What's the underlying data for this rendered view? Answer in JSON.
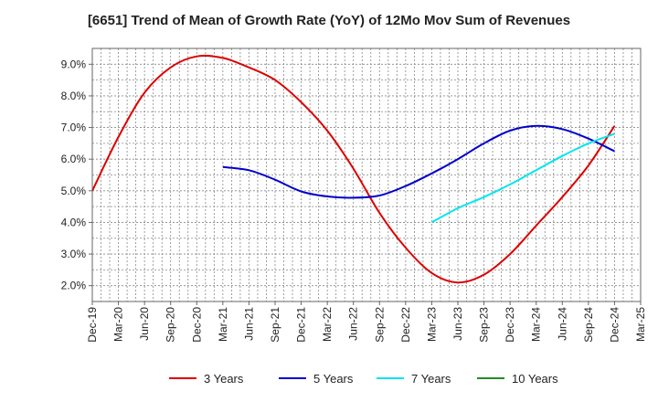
{
  "chart_data": {
    "type": "line",
    "title": "[6651]  Trend of Mean of Growth Rate (YoY) of 12Mo Mov Sum of Revenues",
    "xlabel": "",
    "ylabel": "",
    "x_tick_labels": [
      "Dec-19",
      "Mar-20",
      "Jun-20",
      "Sep-20",
      "Dec-20",
      "Mar-21",
      "Jun-21",
      "Sep-21",
      "Dec-21",
      "Mar-22",
      "Jun-22",
      "Sep-22",
      "Dec-22",
      "Mar-23",
      "Jun-23",
      "Sep-23",
      "Dec-23",
      "Mar-24",
      "Jun-24",
      "Sep-24",
      "Dec-24",
      "Mar-25"
    ],
    "y_tick_labels": [
      "2.0%",
      "3.0%",
      "4.0%",
      "5.0%",
      "6.0%",
      "7.0%",
      "8.0%",
      "9.0%"
    ],
    "y_ticks": [
      2,
      3,
      4,
      5,
      6,
      7,
      8,
      9
    ],
    "ylim": [
      1.5,
      9.5
    ],
    "grid": true,
    "legend_position": "bottom",
    "series": [
      {
        "name": "3 Years",
        "color": "#dd0000",
        "values": [
          5.0,
          6.7,
          8.1,
          8.9,
          9.25,
          9.2,
          8.9,
          8.5,
          7.8,
          6.9,
          5.7,
          4.3,
          3.2,
          2.4,
          2.1,
          2.35,
          3.0,
          3.9,
          4.8,
          5.8,
          7.05,
          null
        ]
      },
      {
        "name": "5 Years",
        "color": "#0000cc",
        "values": [
          null,
          null,
          null,
          null,
          null,
          5.75,
          5.65,
          5.35,
          4.98,
          4.82,
          4.78,
          4.85,
          5.15,
          5.55,
          6.0,
          6.5,
          6.9,
          7.05,
          6.95,
          6.65,
          6.25,
          null
        ]
      },
      {
        "name": "7 Years",
        "color": "#00e5ee",
        "values": [
          null,
          null,
          null,
          null,
          null,
          null,
          null,
          null,
          null,
          null,
          null,
          null,
          null,
          4.0,
          4.45,
          4.8,
          5.2,
          5.65,
          6.1,
          6.5,
          6.8,
          null
        ]
      },
      {
        "name": "10 Years",
        "color": "#228b22",
        "values": [
          null,
          null,
          null,
          null,
          null,
          null,
          null,
          null,
          null,
          null,
          null,
          null,
          null,
          null,
          null,
          null,
          null,
          null,
          null,
          null,
          null,
          null
        ]
      }
    ]
  }
}
